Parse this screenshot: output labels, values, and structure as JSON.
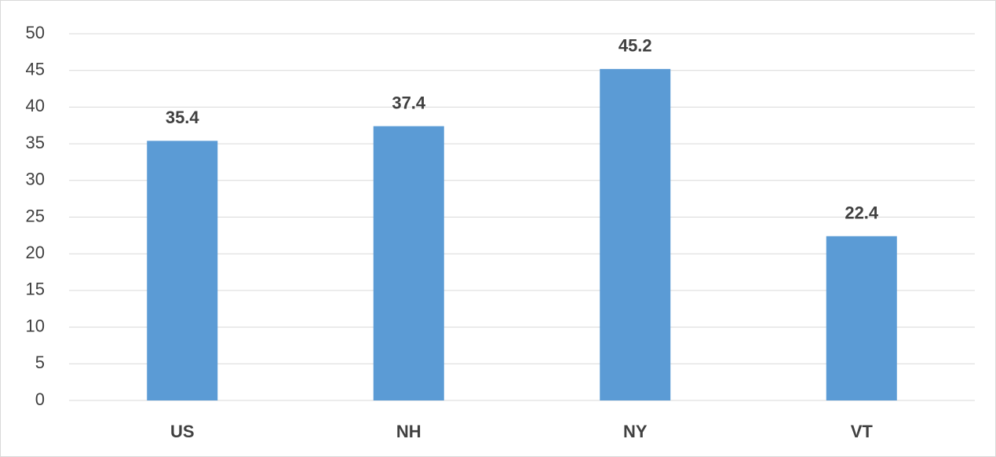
{
  "chart_data": {
    "type": "bar",
    "categories": [
      "US",
      "NH",
      "NY",
      "VT"
    ],
    "values": [
      35.4,
      37.4,
      45.2,
      22.4
    ],
    "color": "#5b9bd5",
    "ylim": [
      0,
      50
    ],
    "yticks": [
      0,
      5,
      10,
      15,
      20,
      25,
      30,
      35,
      40,
      45,
      50
    ],
    "grid": true,
    "data_labels": true
  }
}
